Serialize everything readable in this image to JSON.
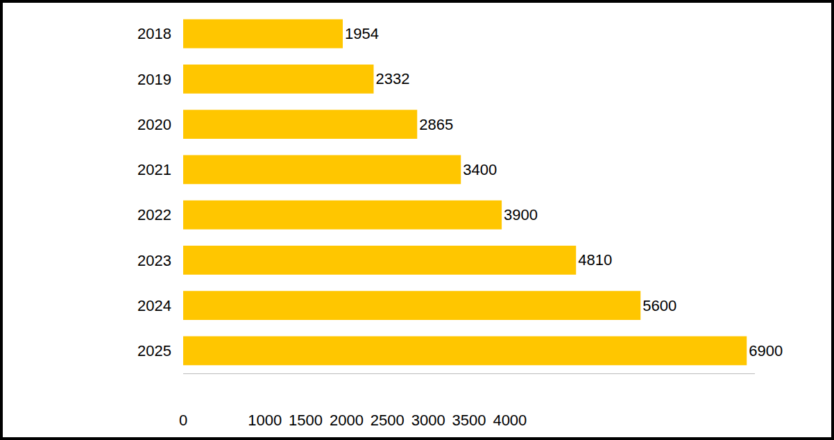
{
  "chart_data": {
    "type": "bar",
    "orientation": "horizontal",
    "categories": [
      "2018",
      "2019",
      "2020",
      "2021",
      "2022",
      "2023",
      "2024",
      "2025"
    ],
    "values": [
      1954,
      2332,
      2865,
      3400,
      3900,
      4810,
      5600,
      6900
    ],
    "color": "#ffc600",
    "xlim": [
      0,
      7000
    ],
    "xticks": [
      0,
      1000,
      1500,
      2000,
      2500,
      3000,
      3500,
      4000
    ],
    "grid": false,
    "data_labels": true
  }
}
